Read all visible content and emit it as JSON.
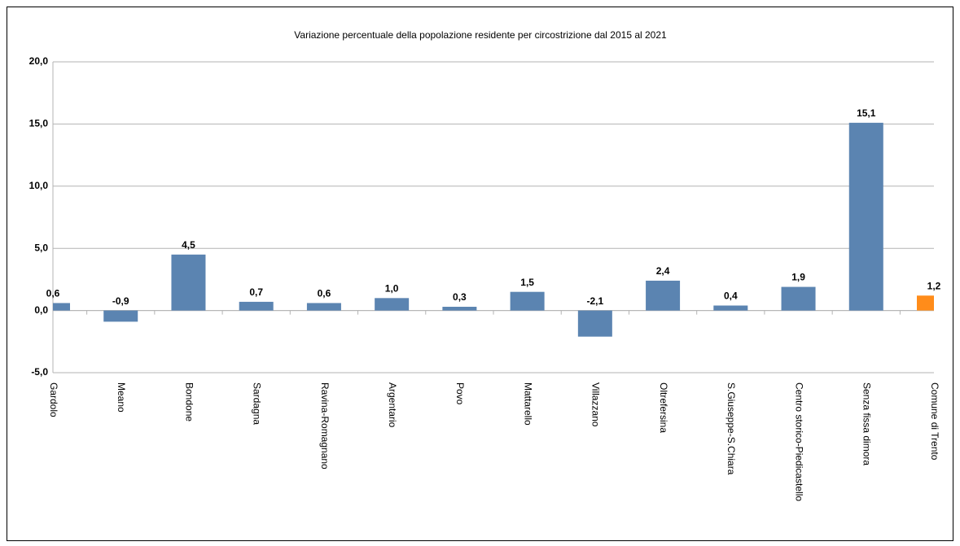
{
  "chart_data": {
    "type": "bar",
    "title": "Variazione percentuale della popolazione residente per circostrizione dal 2015 al 2021",
    "categories": [
      "Gardolo",
      "Meano",
      "Bondone",
      "Sardagna",
      "Ravina-Romagnano",
      "Argentario",
      "Povo",
      "Mattarello",
      "Villazzano",
      "Oltrefersina",
      "S.Giuseppe-S.Chiara",
      "Centro storico-Piedicastello",
      "Senza fissa dimora",
      "Comune di Trento"
    ],
    "values": [
      0.6,
      -0.9,
      4.5,
      0.7,
      0.6,
      1.0,
      0.3,
      1.5,
      -2.1,
      2.4,
      0.4,
      1.9,
      15.1,
      1.2
    ],
    "value_labels": [
      "0,6",
      "-0,9",
      "4,5",
      "0,7",
      "0,6",
      "1,0",
      "0,3",
      "1,5",
      "-2,1",
      "2,4",
      "0,4",
      "1,9",
      "15,1",
      "1,2"
    ],
    "colors": [
      "#5b84b1",
      "#5b84b1",
      "#5b84b1",
      "#5b84b1",
      "#5b84b1",
      "#5b84b1",
      "#5b84b1",
      "#5b84b1",
      "#5b84b1",
      "#5b84b1",
      "#5b84b1",
      "#5b84b1",
      "#5b84b1",
      "#ff8c1a"
    ],
    "ylim": [
      -5,
      20
    ],
    "yticks": [
      {
        "value": -5,
        "label": "-5,0"
      },
      {
        "value": 0,
        "label": "0,0"
      },
      {
        "value": 5,
        "label": "5,0"
      },
      {
        "value": 10,
        "label": "10,0"
      },
      {
        "value": 15,
        "label": "15,0"
      },
      {
        "value": 20,
        "label": "20,0"
      }
    ],
    "grid": true
  }
}
